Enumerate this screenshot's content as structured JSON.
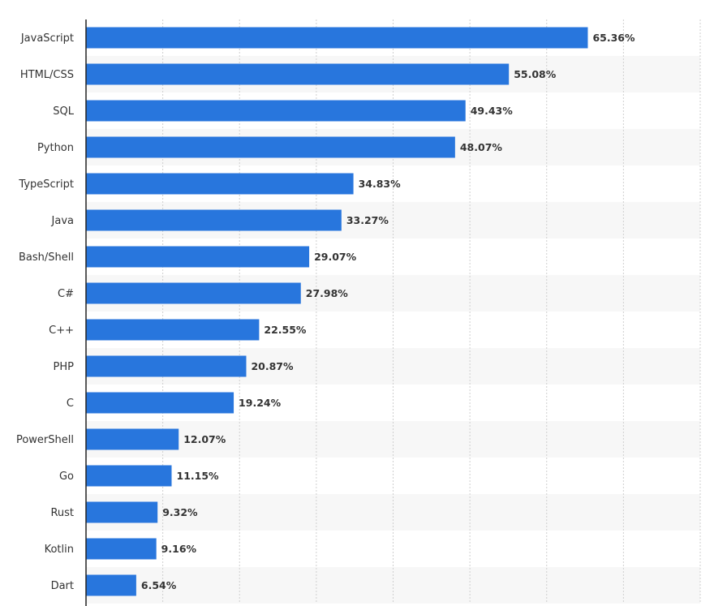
{
  "chart_data": {
    "type": "bar",
    "orientation": "horizontal",
    "categories": [
      "JavaScript",
      "HTML/CSS",
      "SQL",
      "Python",
      "TypeScript",
      "Java",
      "Bash/Shell",
      "C#",
      "C++",
      "PHP",
      "C",
      "PowerShell",
      "Go",
      "Rust",
      "Kotlin",
      "Dart"
    ],
    "values": [
      65.36,
      55.08,
      49.43,
      48.07,
      34.83,
      33.27,
      29.07,
      27.98,
      22.55,
      20.87,
      19.24,
      12.07,
      11.15,
      9.32,
      9.16,
      6.54
    ],
    "value_labels": [
      "65.36%",
      "55.08%",
      "49.43%",
      "48.07%",
      "34.83%",
      "33.27%",
      "29.07%",
      "27.98%",
      "22.55%",
      "20.87%",
      "19.24%",
      "12.07%",
      "11.15%",
      "9.32%",
      "9.16%",
      "6.54%"
    ],
    "xlim": [
      0,
      80
    ],
    "grid_step": 10,
    "grid": true,
    "bar_color": "#2876dd",
    "band_color": "#f7f7f7"
  }
}
